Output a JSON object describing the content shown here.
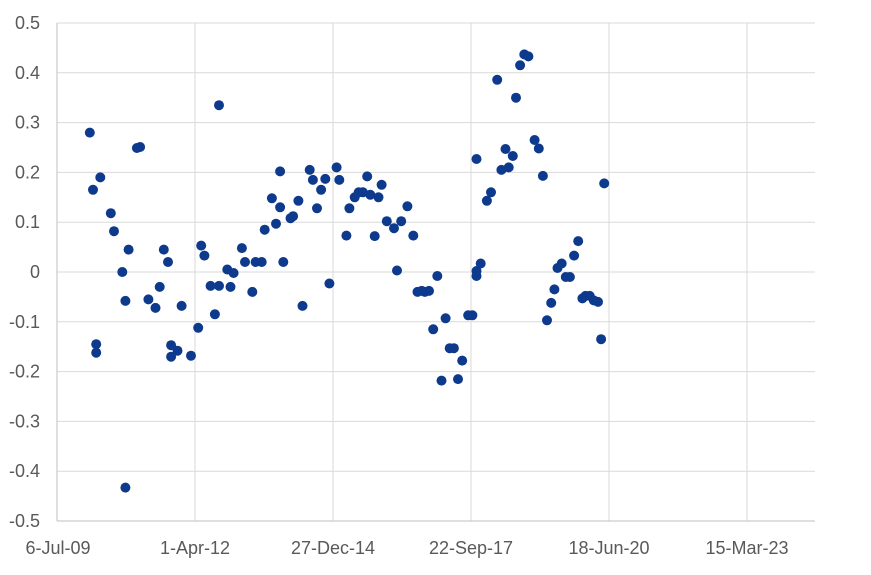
{
  "chart_data": {
    "type": "scatter",
    "title": "",
    "xlabel": "",
    "ylabel": "",
    "xlim": [
      "2009-07-06",
      "2024-12-31"
    ],
    "ylim": [
      -0.5,
      0.5
    ],
    "x_ticks": [
      {
        "date": "2009-07-06",
        "label": "6-Jul-09"
      },
      {
        "date": "2012-04-01",
        "label": "1-Apr-12"
      },
      {
        "date": "2014-12-27",
        "label": "27-Dec-14"
      },
      {
        "date": "2017-09-22",
        "label": "22-Sep-17"
      },
      {
        "date": "2020-06-18",
        "label": "18-Jun-20"
      },
      {
        "date": "2023-03-15",
        "label": "15-Mar-23"
      }
    ],
    "y_ticks": [
      0.5,
      0.4,
      0.3,
      0.2,
      0.1,
      0,
      -0.1,
      -0.2,
      -0.3,
      -0.4,
      -0.5
    ],
    "y_tick_labels": [
      "0.5",
      "0.4",
      "0.3",
      "0.2",
      "0.1",
      "0",
      "-0.1",
      "-0.2",
      "-0.3",
      "-0.4",
      "-0.5"
    ],
    "grid": true,
    "legend": "none",
    "colors": {
      "marker": "#0d3a8c",
      "grid": "#d9d9d9",
      "axis": "#bfbfbf",
      "tick_text": "#595959"
    },
    "points": [
      {
        "x": "2010-03-01",
        "y": 0.28
      },
      {
        "x": "2010-03-24",
        "y": 0.165
      },
      {
        "x": "2010-04-16",
        "y": -0.145
      },
      {
        "x": "2010-04-16",
        "y": -0.162
      },
      {
        "x": "2010-05-16",
        "y": 0.19
      },
      {
        "x": "2010-07-31",
        "y": 0.118
      },
      {
        "x": "2010-08-23",
        "y": 0.082
      },
      {
        "x": "2010-10-22",
        "y": 0.0
      },
      {
        "x": "2010-11-14",
        "y": -0.058
      },
      {
        "x": "2010-11-14",
        "y": -0.433
      },
      {
        "x": "2010-12-07",
        "y": 0.045
      },
      {
        "x": "2011-02-05",
        "y": 0.249
      },
      {
        "x": "2011-02-28",
        "y": 0.251
      },
      {
        "x": "2011-04-29",
        "y": -0.055
      },
      {
        "x": "2011-06-20",
        "y": -0.072
      },
      {
        "x": "2011-07-20",
        "y": -0.03
      },
      {
        "x": "2011-08-19",
        "y": 0.045
      },
      {
        "x": "2011-09-18",
        "y": 0.02
      },
      {
        "x": "2011-10-11",
        "y": -0.147
      },
      {
        "x": "2011-10-11",
        "y": -0.17
      },
      {
        "x": "2011-11-26",
        "y": -0.158
      },
      {
        "x": "2011-12-26",
        "y": -0.068
      },
      {
        "x": "2012-03-03",
        "y": -0.168
      },
      {
        "x": "2012-04-24",
        "y": -0.112
      },
      {
        "x": "2012-05-16",
        "y": 0.053
      },
      {
        "x": "2012-06-08",
        "y": 0.033
      },
      {
        "x": "2012-07-23",
        "y": -0.028
      },
      {
        "x": "2012-08-23",
        "y": -0.085
      },
      {
        "x": "2012-09-22",
        "y": 0.335
      },
      {
        "x": "2012-09-22",
        "y": -0.028
      },
      {
        "x": "2012-11-21",
        "y": 0.005
      },
      {
        "x": "2012-12-14",
        "y": -0.03
      },
      {
        "x": "2013-01-06",
        "y": -0.002
      },
      {
        "x": "2013-03-07",
        "y": 0.048
      },
      {
        "x": "2013-03-29",
        "y": 0.02
      },
      {
        "x": "2013-05-21",
        "y": -0.04
      },
      {
        "x": "2013-06-14",
        "y": 0.02
      },
      {
        "x": "2013-07-28",
        "y": 0.02
      },
      {
        "x": "2013-08-19",
        "y": 0.085
      },
      {
        "x": "2013-10-10",
        "y": 0.148
      },
      {
        "x": "2013-11-09",
        "y": 0.097
      },
      {
        "x": "2013-12-09",
        "y": 0.13
      },
      {
        "x": "2013-12-09",
        "y": 0.202
      },
      {
        "x": "2014-01-01",
        "y": 0.02
      },
      {
        "x": "2014-02-22",
        "y": 0.108
      },
      {
        "x": "2014-03-13",
        "y": 0.112
      },
      {
        "x": "2014-04-20",
        "y": 0.143
      },
      {
        "x": "2014-05-20",
        "y": -0.068
      },
      {
        "x": "2014-07-11",
        "y": 0.205
      },
      {
        "x": "2014-08-03",
        "y": 0.185
      },
      {
        "x": "2014-09-02",
        "y": 0.128
      },
      {
        "x": "2014-10-02",
        "y": 0.165
      },
      {
        "x": "2014-11-01",
        "y": 0.187
      },
      {
        "x": "2014-12-01",
        "y": -0.023
      },
      {
        "x": "2015-01-22",
        "y": 0.21
      },
      {
        "x": "2015-02-11",
        "y": 0.185
      },
      {
        "x": "2015-04-03",
        "y": 0.073
      },
      {
        "x": "2015-04-25",
        "y": 0.128
      },
      {
        "x": "2015-06-02",
        "y": 0.15
      },
      {
        "x": "2015-07-01",
        "y": 0.16
      },
      {
        "x": "2015-08-01",
        "y": 0.16
      },
      {
        "x": "2015-09-01",
        "y": 0.192
      },
      {
        "x": "2015-09-23",
        "y": 0.155
      },
      {
        "x": "2015-10-25",
        "y": 0.072
      },
      {
        "x": "2015-11-22",
        "y": 0.15
      },
      {
        "x": "2015-12-14",
        "y": 0.175
      },
      {
        "x": "2016-01-21",
        "y": 0.102
      },
      {
        "x": "2016-03-13",
        "y": 0.088
      },
      {
        "x": "2016-04-04",
        "y": 0.003
      },
      {
        "x": "2016-05-04",
        "y": 0.102
      },
      {
        "x": "2016-06-18",
        "y": 0.132
      },
      {
        "x": "2016-07-31",
        "y": 0.073
      },
      {
        "x": "2016-08-30",
        "y": -0.04
      },
      {
        "x": "2016-09-30",
        "y": -0.038
      },
      {
        "x": "2016-10-23",
        "y": -0.04
      },
      {
        "x": "2016-11-22",
        "y": -0.038
      },
      {
        "x": "2016-12-22",
        "y": -0.115
      },
      {
        "x": "2017-01-21",
        "y": -0.008
      },
      {
        "x": "2017-02-20",
        "y": -0.218
      },
      {
        "x": "2017-03-22",
        "y": -0.093
      },
      {
        "x": "2017-04-21",
        "y": -0.153
      },
      {
        "x": "2017-05-21",
        "y": -0.153
      },
      {
        "x": "2017-06-20",
        "y": -0.215
      },
      {
        "x": "2017-07-20",
        "y": -0.178
      },
      {
        "x": "2017-09-02",
        "y": -0.087
      },
      {
        "x": "2017-10-02",
        "y": -0.087
      },
      {
        "x": "2017-11-01",
        "y": 0.227
      },
      {
        "x": "2017-11-01",
        "y": 0.002
      },
      {
        "x": "2017-11-01",
        "y": -0.008
      },
      {
        "x": "2017-12-01",
        "y": 0.017
      },
      {
        "x": "2018-01-15",
        "y": 0.143
      },
      {
        "x": "2018-02-14",
        "y": 0.16
      },
      {
        "x": "2018-03-31",
        "y": 0.386
      },
      {
        "x": "2018-04-30",
        "y": 0.205
      },
      {
        "x": "2018-05-30",
        "y": 0.247
      },
      {
        "x": "2018-06-22",
        "y": 0.21
      },
      {
        "x": "2018-07-22",
        "y": 0.233
      },
      {
        "x": "2018-08-14",
        "y": 0.35
      },
      {
        "x": "2018-09-13",
        "y": 0.415
      },
      {
        "x": "2018-10-13",
        "y": 0.437
      },
      {
        "x": "2018-11-12",
        "y": 0.433
      },
      {
        "x": "2018-12-27",
        "y": 0.265
      },
      {
        "x": "2019-01-26",
        "y": 0.248
      },
      {
        "x": "2019-02-25",
        "y": 0.193
      },
      {
        "x": "2019-03-27",
        "y": -0.097
      },
      {
        "x": "2019-04-26",
        "y": -0.062
      },
      {
        "x": "2019-05-19",
        "y": -0.035
      },
      {
        "x": "2019-06-11",
        "y": 0.008
      },
      {
        "x": "2019-07-11",
        "y": 0.017
      },
      {
        "x": "2019-08-10",
        "y": -0.01
      },
      {
        "x": "2019-09-09",
        "y": -0.01
      },
      {
        "x": "2019-10-09",
        "y": 0.033
      },
      {
        "x": "2019-11-08",
        "y": 0.062
      },
      {
        "x": "2019-12-08",
        "y": -0.053
      },
      {
        "x": "2019-12-31",
        "y": -0.048
      },
      {
        "x": "2020-01-30",
        "y": -0.048
      },
      {
        "x": "2020-02-29",
        "y": -0.057
      },
      {
        "x": "2020-03-30",
        "y": -0.06
      },
      {
        "x": "2020-04-22",
        "y": -0.135
      },
      {
        "x": "2020-05-14",
        "y": 0.178
      }
    ]
  }
}
